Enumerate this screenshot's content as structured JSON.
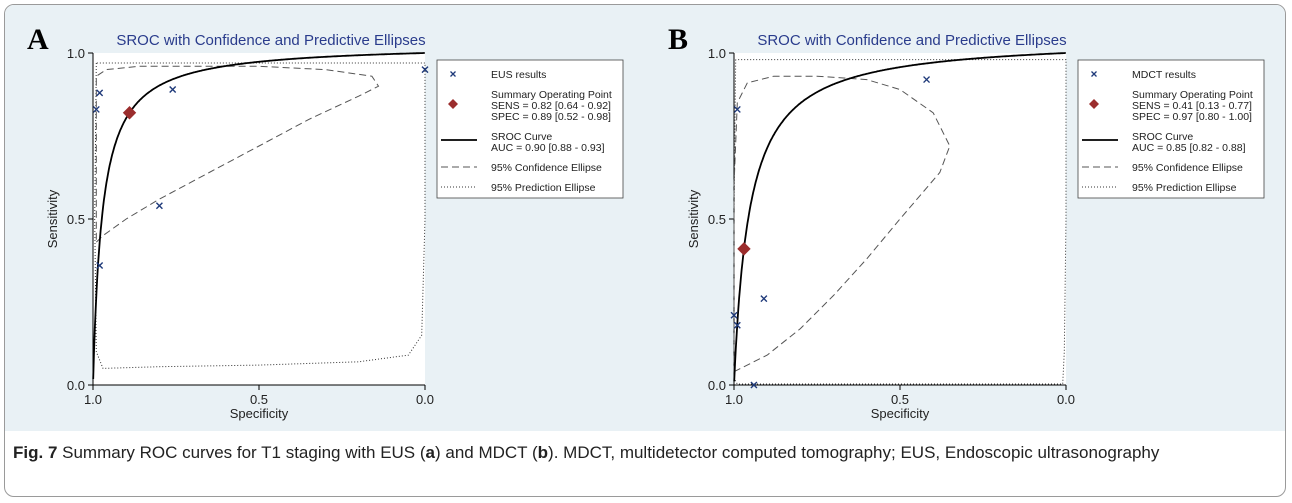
{
  "caption": {
    "label": "Fig. 7",
    "text1": " Summary ROC curves for T1 staging with EUS (",
    "a": "a",
    "text2": ") and MDCT (",
    "b": "b",
    "text3": "). MDCT, multidetector computed tomography; EUS, Endoscopic ultrasonography"
  },
  "chart_data": [
    {
      "type": "scatter",
      "panel": "A",
      "title": "SROC with Confidence and Predictive Ellipses",
      "xlabel": "Specificity",
      "ylabel": "Sensitivity",
      "xlim": [
        1.0,
        0.0
      ],
      "ylim": [
        0.0,
        1.0
      ],
      "xticks": [
        "1.0",
        "0.5",
        "0.0"
      ],
      "yticks": [
        "0.0",
        "0.5",
        "1.0"
      ],
      "study_points": [
        {
          "spec": 0.99,
          "sens": 0.83
        },
        {
          "spec": 0.98,
          "sens": 0.88
        },
        {
          "spec": 0.76,
          "sens": 0.89
        },
        {
          "spec": 0.0,
          "sens": 0.95
        },
        {
          "spec": 0.8,
          "sens": 0.54
        },
        {
          "spec": 0.98,
          "sens": 0.36
        }
      ],
      "summary_point": {
        "spec": 0.89,
        "sens": 0.82
      },
      "auc": 0.9,
      "legend": [
        {
          "marker": "x",
          "text": "EUS results"
        },
        {
          "marker": "diamond",
          "text": "Summary Operating Point",
          "lines": [
            "SENS = 0.82 [0.64 - 0.92]",
            "SPEC = 0.89 [0.52 - 0.98]"
          ]
        },
        {
          "marker": "solid",
          "text": "SROC Curve",
          "lines": [
            "AUC = 0.90 [0.88 - 0.93]"
          ]
        },
        {
          "marker": "dashed",
          "text": "95% Confidence Ellipse"
        },
        {
          "marker": "dotted",
          "text": "95% Prediction Ellipse"
        }
      ],
      "confidence_ellipse": [
        [
          0.99,
          0.43
        ],
        [
          0.97,
          0.45
        ],
        [
          0.9,
          0.5
        ],
        [
          0.8,
          0.56
        ],
        [
          0.65,
          0.64
        ],
        [
          0.5,
          0.72
        ],
        [
          0.35,
          0.8
        ],
        [
          0.2,
          0.87
        ],
        [
          0.14,
          0.9
        ],
        [
          0.16,
          0.93
        ],
        [
          0.3,
          0.95
        ],
        [
          0.5,
          0.96
        ],
        [
          0.7,
          0.96
        ],
        [
          0.86,
          0.96
        ],
        [
          0.96,
          0.95
        ],
        [
          0.99,
          0.93
        ],
        [
          0.99,
          0.75
        ],
        [
          0.99,
          0.55
        ],
        [
          0.99,
          0.43
        ]
      ],
      "prediction_ellipse": [
        [
          0.99,
          0.97
        ],
        [
          0.995,
          0.5
        ],
        [
          0.99,
          0.1
        ],
        [
          0.97,
          0.05
        ],
        [
          0.8,
          0.055
        ],
        [
          0.5,
          0.06
        ],
        [
          0.2,
          0.07
        ],
        [
          0.05,
          0.09
        ],
        [
          0.01,
          0.15
        ],
        [
          0.0,
          0.5
        ],
        [
          0.0,
          0.97
        ],
        [
          0.99,
          0.97
        ]
      ]
    },
    {
      "type": "scatter",
      "panel": "B",
      "title": "SROC with Confidence and Predictive Ellipses",
      "xlabel": "Specificity",
      "ylabel": "Sensitivity",
      "xlim": [
        1.0,
        0.0
      ],
      "ylim": [
        0.0,
        1.0
      ],
      "xticks": [
        "1.0",
        "0.5",
        "0.0"
      ],
      "yticks": [
        "0.0",
        "0.5",
        "1.0"
      ],
      "study_points": [
        {
          "spec": 0.99,
          "sens": 0.83
        },
        {
          "spec": 0.42,
          "sens": 0.92
        },
        {
          "spec": 0.91,
          "sens": 0.26
        },
        {
          "spec": 1.0,
          "sens": 0.21
        },
        {
          "spec": 0.99,
          "sens": 0.18
        },
        {
          "spec": 0.94,
          "sens": 0.0
        }
      ],
      "summary_point": {
        "spec": 0.97,
        "sens": 0.41
      },
      "auc": 0.85,
      "legend": [
        {
          "marker": "x",
          "text": "MDCT results"
        },
        {
          "marker": "diamond",
          "text": "Summary Operating Point",
          "lines": [
            "SENS = 0.41 [0.13 - 0.77]",
            "SPEC = 0.97 [0.80 - 1.00]"
          ]
        },
        {
          "marker": "solid",
          "text": "SROC Curve",
          "lines": [
            "AUC = 0.85 [0.82 - 0.88]"
          ]
        },
        {
          "marker": "dashed",
          "text": "95% Confidence Ellipse"
        },
        {
          "marker": "dotted",
          "text": "95% Prediction Ellipse"
        }
      ],
      "confidence_ellipse": [
        [
          1.0,
          0.04
        ],
        [
          0.9,
          0.09
        ],
        [
          0.8,
          0.17
        ],
        [
          0.7,
          0.27
        ],
        [
          0.6,
          0.38
        ],
        [
          0.5,
          0.5
        ],
        [
          0.38,
          0.64
        ],
        [
          0.35,
          0.72
        ],
        [
          0.4,
          0.82
        ],
        [
          0.5,
          0.89
        ],
        [
          0.6,
          0.92
        ],
        [
          0.75,
          0.93
        ],
        [
          0.88,
          0.93
        ],
        [
          0.96,
          0.91
        ],
        [
          0.99,
          0.85
        ],
        [
          1.0,
          0.6
        ],
        [
          1.0,
          0.3
        ],
        [
          1.0,
          0.04
        ]
      ],
      "prediction_ellipse": [
        [
          0.995,
          0.98
        ],
        [
          1.0,
          0.5
        ],
        [
          1.0,
          0.02
        ],
        [
          0.99,
          0.003
        ],
        [
          0.5,
          0.003
        ],
        [
          0.01,
          0.003
        ],
        [
          0.005,
          0.1
        ],
        [
          0.0,
          0.5
        ],
        [
          0.0,
          0.98
        ],
        [
          0.995,
          0.98
        ]
      ]
    }
  ],
  "colors": {
    "accent": "#2a3c8c",
    "marker": "#1f3a7a",
    "summary": "#9b2d2d",
    "plot_bg": "#ffffff",
    "panel_bg": "#e9f1f5",
    "ink": "#000000"
  },
  "panels": [
    "A",
    "B"
  ]
}
